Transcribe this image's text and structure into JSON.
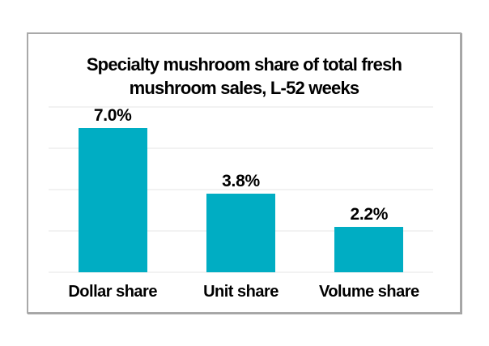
{
  "page": {
    "background": "#ffffff"
  },
  "chart_data": {
    "type": "bar",
    "title": "Specialty mushroom share of total fresh mushroom sales, L-52 weeks",
    "title_lines": [
      "Specialty mushroom share of total fresh",
      "mushroom sales, L-52 weeks"
    ],
    "categories": [
      "Dollar share",
      "Unit share",
      "Volume share"
    ],
    "values": [
      7.0,
      3.8,
      2.2
    ],
    "value_labels": [
      "7.0%",
      "3.8%",
      "2.2%"
    ],
    "xlabel": "",
    "ylabel": "",
    "ylim": [
      0,
      8
    ],
    "grid": "5 horizontal gridlines every 2% from 0 to 8, light gray, no axis tick labels",
    "legend": "none",
    "colors": {
      "bar": "#00adc3",
      "gridline": "#f2f2f2",
      "frame_border": "#a9a9a9",
      "text": "#000000",
      "background": "#ffffff"
    }
  }
}
